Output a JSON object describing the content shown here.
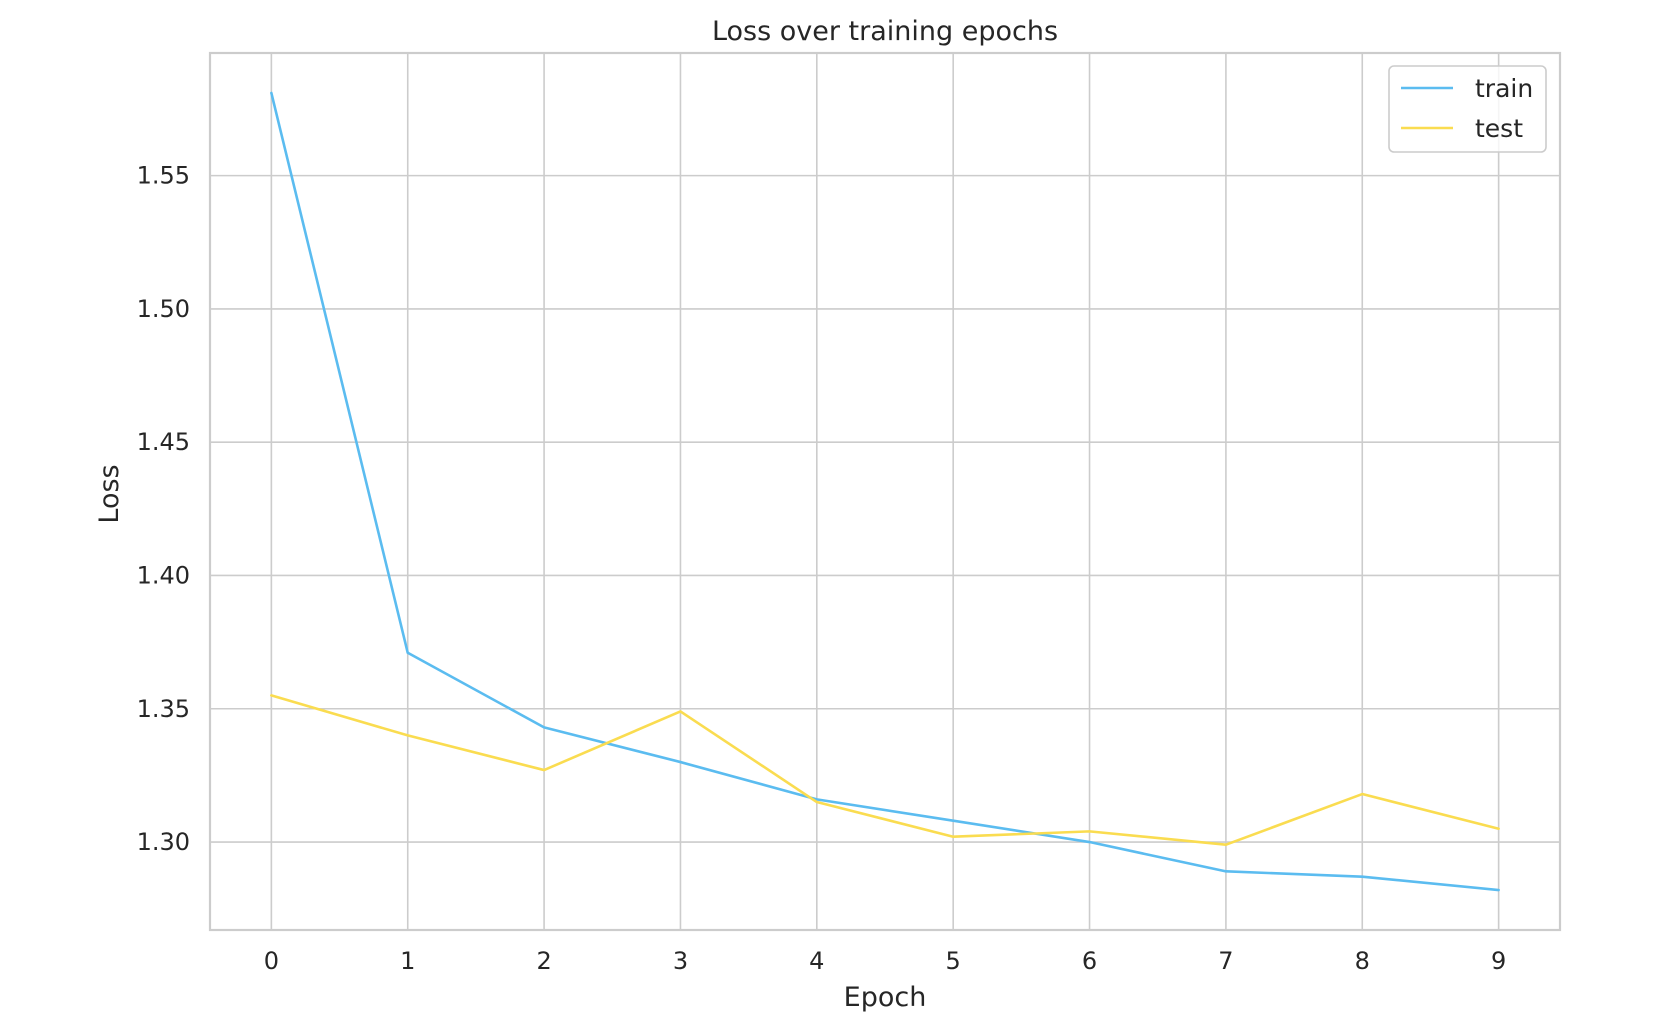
{
  "chart_data": {
    "type": "line",
    "title": "Loss over training epochs",
    "xlabel": "Epoch",
    "ylabel": "Loss",
    "x": [
      0,
      1,
      2,
      3,
      4,
      5,
      6,
      7,
      8,
      9
    ],
    "xlim": [
      -0.45,
      9.45
    ],
    "ylim": [
      1.267,
      1.596
    ],
    "xticks": [
      0,
      1,
      2,
      3,
      4,
      5,
      6,
      7,
      8,
      9
    ],
    "yticks": [
      1.3,
      1.35,
      1.4,
      1.45,
      1.5,
      1.55
    ],
    "ytick_labels": [
      "1.30",
      "1.35",
      "1.40",
      "1.45",
      "1.50",
      "1.55"
    ],
    "grid": true,
    "legend_position": "top-right",
    "series": [
      {
        "name": "train",
        "color": "#5bbcf0",
        "values": [
          1.581,
          1.371,
          1.343,
          1.33,
          1.316,
          1.308,
          1.3,
          1.289,
          1.287,
          1.282
        ]
      },
      {
        "name": "test",
        "color": "#fadc50",
        "values": [
          1.355,
          1.34,
          1.327,
          1.349,
          1.315,
          1.302,
          1.304,
          1.299,
          1.318,
          1.305
        ]
      }
    ]
  }
}
